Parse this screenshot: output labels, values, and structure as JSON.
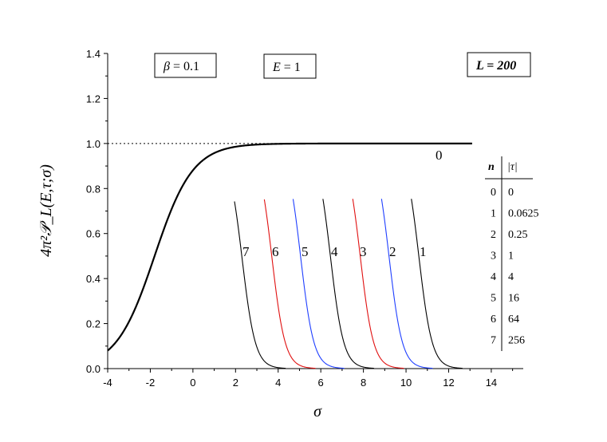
{
  "chart_data": {
    "type": "line",
    "xlabel": "σ",
    "ylabel": "4π²𝒫_L(E,τ;σ)",
    "xlim": [
      -4,
      15.5
    ],
    "ylim": [
      0,
      1.4
    ],
    "xticks": [
      "-4",
      "-2",
      "0",
      "2",
      "4",
      "6",
      "8",
      "10",
      "12",
      "14"
    ],
    "yticks": [
      "0.0",
      "0.2",
      "0.4",
      "0.6",
      "0.8",
      "1.0",
      "1.2",
      "1.4"
    ],
    "reference_line": {
      "y": 1.0,
      "style": "dotted"
    },
    "envelope": {
      "name": "0",
      "center": -1.8,
      "width": 0.9,
      "x_range": [
        -4,
        13.1
      ]
    },
    "series": [
      {
        "name": "0",
        "tau": "0",
        "drop": null,
        "color": "#000000"
      },
      {
        "name": "1",
        "tau": "0.0625",
        "drop": 10.3,
        "color": "#000000"
      },
      {
        "name": "2",
        "tau": "0.25",
        "drop": 8.9,
        "color": "#1f3fff"
      },
      {
        "name": "3",
        "tau": "1",
        "drop": 7.55,
        "color": "#e01010"
      },
      {
        "name": "4",
        "tau": "4",
        "drop": 6.15,
        "color": "#000000"
      },
      {
        "name": "5",
        "tau": "16",
        "drop": 4.75,
        "color": "#1f3fff"
      },
      {
        "name": "6",
        "tau": "64",
        "drop": 3.4,
        "color": "#e01010"
      },
      {
        "name": "7",
        "tau": "256",
        "drop": 2.0,
        "color": "#000000"
      }
    ],
    "curve_labels": [
      "7",
      "6",
      "5",
      "4",
      "3",
      "2",
      "1",
      "0"
    ],
    "annotations": {
      "beta": {
        "symbol": "β",
        "eq": " = 0.1"
      },
      "energy": {
        "symbol": "E",
        "eq": " = 1"
      },
      "length": "L = 200"
    },
    "table": {
      "header_n": "n",
      "header_tau": "|τ|",
      "rows": [
        {
          "n": "0",
          "tau": "0"
        },
        {
          "n": "1",
          "tau": "0.0625"
        },
        {
          "n": "2",
          "tau": "0.25"
        },
        {
          "n": "3",
          "tau": "1"
        },
        {
          "n": "4",
          "tau": "4"
        },
        {
          "n": "5",
          "tau": "16"
        },
        {
          "n": "6",
          "tau": "64"
        },
        {
          "n": "7",
          "tau": "256"
        }
      ]
    }
  }
}
